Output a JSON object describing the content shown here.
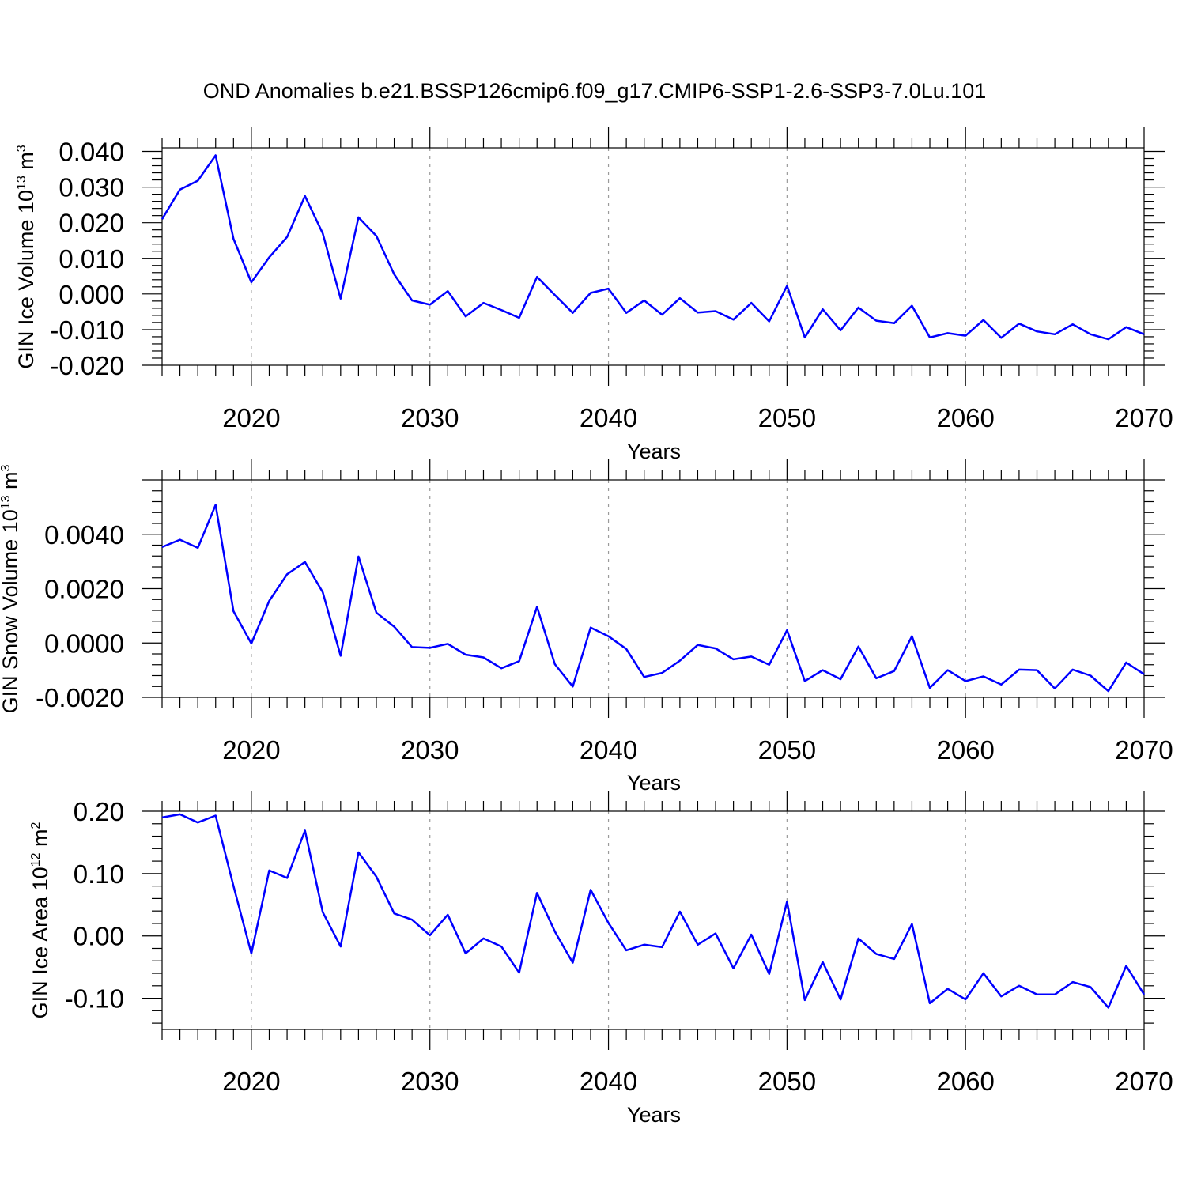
{
  "title": "OND Anomalies b.e21.BSSP126cmip6.f09_g17.CMIP6-SSP1-2.6-SSP3-7.0Lu.101",
  "line_color": "#0000ff",
  "chart_data": [
    {
      "type": "line",
      "ylabel": "GIN Ice Volume 10",
      "ylabel_exp": "13",
      "ylabel_unit": " m",
      "ylabel_unit_exp": "3",
      "xlabel": "Years",
      "xlim": [
        2015,
        2070
      ],
      "ylim": [
        -0.02,
        0.041
      ],
      "x_ticks": [
        2020,
        2030,
        2040,
        2050,
        2060,
        2070
      ],
      "x_tick_labels": [
        "2020",
        "2030",
        "2040",
        "2050",
        "2060",
        "2070"
      ],
      "y_ticks": [
        0.04,
        0.03,
        0.02,
        0.01,
        0.0,
        -0.01,
        -0.02
      ],
      "y_tick_labels": [
        "0.040",
        "0.030",
        "0.020",
        "0.010",
        "0.000",
        "-0.010",
        "-0.020"
      ],
      "x": [
        2015,
        2016,
        2017,
        2018,
        2019,
        2020,
        2021,
        2022,
        2023,
        2024,
        2025,
        2026,
        2027,
        2028,
        2029,
        2030,
        2031,
        2032,
        2033,
        2034,
        2035,
        2036,
        2037,
        2038,
        2039,
        2040,
        2041,
        2042,
        2043,
        2044,
        2045,
        2046,
        2047,
        2048,
        2049,
        2050,
        2051,
        2052,
        2053,
        2054,
        2055,
        2056,
        2057,
        2058,
        2059,
        2060,
        2061,
        2062,
        2063,
        2064,
        2065,
        2066,
        2067,
        2068,
        2069,
        2070
      ],
      "y": [
        0.021,
        0.0293,
        0.0318,
        0.0389,
        0.0155,
        0.0033,
        0.0103,
        0.016,
        0.0275,
        0.017,
        -0.0013,
        0.0215,
        0.0163,
        0.0055,
        -0.0018,
        -0.003,
        0.0008,
        -0.0063,
        -0.0025,
        -0.0045,
        -0.0067,
        0.0048,
        -0.0003,
        -0.0053,
        0.0003,
        0.0015,
        -0.0053,
        -0.0018,
        -0.0058,
        -0.0012,
        -0.0052,
        -0.0048,
        -0.0072,
        -0.0025,
        -0.0077,
        0.0023,
        -0.0122,
        -0.0043,
        -0.0102,
        -0.0038,
        -0.0075,
        -0.0082,
        -0.0033,
        -0.0122,
        -0.011,
        -0.0117,
        -0.0073,
        -0.0123,
        -0.0083,
        -0.0105,
        -0.0113,
        -0.0085,
        -0.0113,
        -0.0127,
        -0.0093,
        -0.0113
      ]
    },
    {
      "type": "line",
      "ylabel": "GIN Snow Volume 10",
      "ylabel_exp": "13",
      "ylabel_unit": " m",
      "ylabel_unit_exp": "3",
      "xlabel": "Years",
      "xlim": [
        2015,
        2070
      ],
      "ylim": [
        -0.002,
        0.006
      ],
      "x_ticks": [
        2020,
        2030,
        2040,
        2050,
        2060,
        2070
      ],
      "x_tick_labels": [
        "2020",
        "2030",
        "2040",
        "2050",
        "2060",
        "2070"
      ],
      "y_ticks": [
        0.004,
        0.002,
        0.0,
        -0.002
      ],
      "y_tick_labels": [
        "0.0040",
        "0.0020",
        "0.0000",
        "-0.0020"
      ],
      "x": [
        2015,
        2016,
        2017,
        2018,
        2019,
        2020,
        2021,
        2022,
        2023,
        2024,
        2025,
        2026,
        2027,
        2028,
        2029,
        2030,
        2031,
        2032,
        2033,
        2034,
        2035,
        2036,
        2037,
        2038,
        2039,
        2040,
        2041,
        2042,
        2043,
        2044,
        2045,
        2046,
        2047,
        2048,
        2049,
        2050,
        2051,
        2052,
        2053,
        2054,
        2055,
        2056,
        2057,
        2058,
        2059,
        2060,
        2061,
        2062,
        2063,
        2064,
        2065,
        2066,
        2067,
        2068,
        2069,
        2070
      ],
      "y": [
        0.00353,
        0.0038,
        0.0035,
        0.00508,
        0.00117,
        -2e-05,
        0.00155,
        0.00253,
        0.00298,
        0.00187,
        -0.00047,
        0.00318,
        0.00112,
        0.0006,
        -0.00015,
        -0.00018,
        -3e-05,
        -0.00043,
        -0.00053,
        -0.00093,
        -0.00067,
        0.00133,
        -0.00078,
        -0.0016,
        0.00057,
        0.00025,
        -0.00022,
        -0.00125,
        -0.0011,
        -0.00065,
        -7e-05,
        -0.0002,
        -0.0006,
        -0.0005,
        -0.0008,
        0.00047,
        -0.0014,
        -0.001,
        -0.00133,
        -0.00013,
        -0.0013,
        -0.00103,
        0.00025,
        -0.00165,
        -0.001,
        -0.0014,
        -0.00123,
        -0.00153,
        -0.00098,
        -0.001,
        -0.00167,
        -0.00098,
        -0.0012,
        -0.00177,
        -0.00072,
        -0.00115
      ]
    },
    {
      "type": "line",
      "ylabel": "GIN Ice Area 10",
      "ylabel_exp": "12",
      "ylabel_unit": " m",
      "ylabel_unit_exp": "2",
      "xlabel": "Years",
      "xlim": [
        2015,
        2070
      ],
      "ylim": [
        -0.15,
        0.2
      ],
      "x_ticks": [
        2020,
        2030,
        2040,
        2050,
        2060,
        2070
      ],
      "x_tick_labels": [
        "2020",
        "2030",
        "2040",
        "2050",
        "2060",
        "2070"
      ],
      "y_ticks": [
        0.2,
        0.1,
        0.0,
        -0.1
      ],
      "y_tick_labels": [
        "0.20",
        "0.10",
        "0.00",
        "-0.10"
      ],
      "x": [
        2015,
        2016,
        2017,
        2018,
        2019,
        2020,
        2021,
        2022,
        2023,
        2024,
        2025,
        2026,
        2027,
        2028,
        2029,
        2030,
        2031,
        2032,
        2033,
        2034,
        2035,
        2036,
        2037,
        2038,
        2039,
        2040,
        2041,
        2042,
        2043,
        2044,
        2045,
        2046,
        2047,
        2048,
        2049,
        2050,
        2051,
        2052,
        2053,
        2054,
        2055,
        2056,
        2057,
        2058,
        2059,
        2060,
        2061,
        2062,
        2063,
        2064,
        2065,
        2066,
        2067,
        2068,
        2069,
        2070
      ],
      "y": [
        0.19,
        0.195,
        0.182,
        0.193,
        0.08,
        -0.028,
        0.105,
        0.093,
        0.169,
        0.038,
        -0.017,
        0.134,
        0.095,
        0.036,
        0.026,
        0.001,
        0.034,
        -0.028,
        -0.004,
        -0.017,
        -0.059,
        0.069,
        0.007,
        -0.043,
        0.074,
        0.021,
        -0.023,
        -0.014,
        -0.018,
        0.039,
        -0.014,
        0.004,
        -0.052,
        0.002,
        -0.061,
        0.055,
        -0.103,
        -0.042,
        -0.102,
        -0.004,
        -0.029,
        -0.037,
        0.019,
        -0.108,
        -0.085,
        -0.102,
        -0.06,
        -0.097,
        -0.08,
        -0.094,
        -0.094,
        -0.074,
        -0.082,
        -0.115,
        -0.048,
        -0.094
      ]
    }
  ]
}
